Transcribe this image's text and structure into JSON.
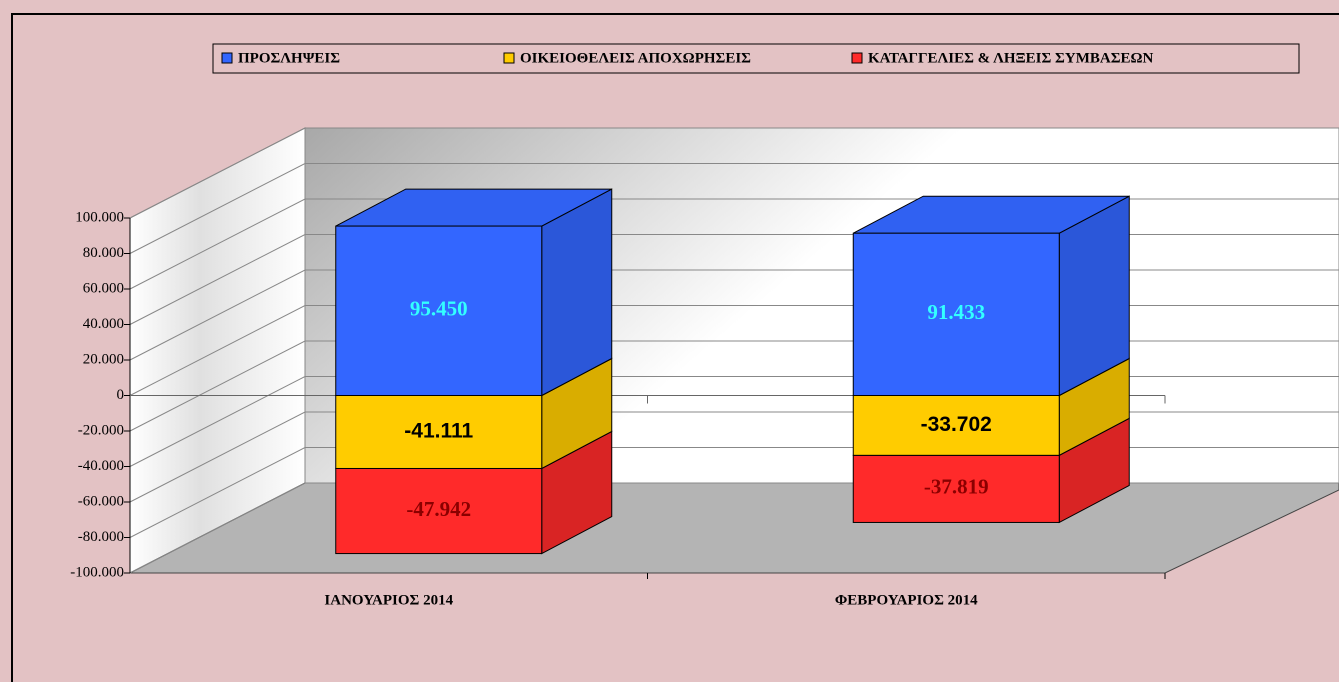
{
  "chart_data": {
    "type": "bar3d_stacked",
    "categories": [
      "ΙΑΝΟΥΑΡΙΟΣ 2014",
      "ΦΕΒΡΟΥΑΡΙΟΣ 2014"
    ],
    "series": [
      {
        "name": "ΠΡΟΣΛΗΨΕΙΣ",
        "color": "#3366ff",
        "values": [
          95450,
          91433
        ],
        "value_labels": [
          "95.450",
          "91.433"
        ]
      },
      {
        "name": "ΟΙΚΕΙΟΘΕΛΕΙΣ ΑΠΟΧΩΡΗΣΕΙΣ",
        "color": "#ffcc00",
        "values": [
          -41111,
          -33702
        ],
        "value_labels": [
          "-41.111",
          "-33.702"
        ]
      },
      {
        "name": "ΚΑΤΑΓΓΕΛΙΕΣ & ΛΗΞΕΙΣ ΣΥΜΒΑΣΕΩΝ",
        "color": "#ff2a2a",
        "values": [
          -47942,
          -37819
        ],
        "value_labels": [
          "-47.942",
          "-37.819"
        ]
      }
    ],
    "ylim": [
      -100000,
      100000
    ],
    "yticks": [
      {
        "value": -100000,
        "label": "-100.000"
      },
      {
        "value": -80000,
        "label": "-80.000"
      },
      {
        "value": -60000,
        "label": "-60.000"
      },
      {
        "value": -40000,
        "label": "-40.000"
      },
      {
        "value": -20000,
        "label": "-20.000"
      },
      0,
      {
        "value": 20000,
        "label": "20.000"
      },
      {
        "value": 40000,
        "label": "40.000"
      },
      {
        "value": 60000,
        "label": "60.000"
      },
      {
        "value": 80000,
        "label": "80.000"
      },
      {
        "value": 100000,
        "label": "100.000"
      }
    ],
    "grid": true,
    "legend": "top"
  }
}
